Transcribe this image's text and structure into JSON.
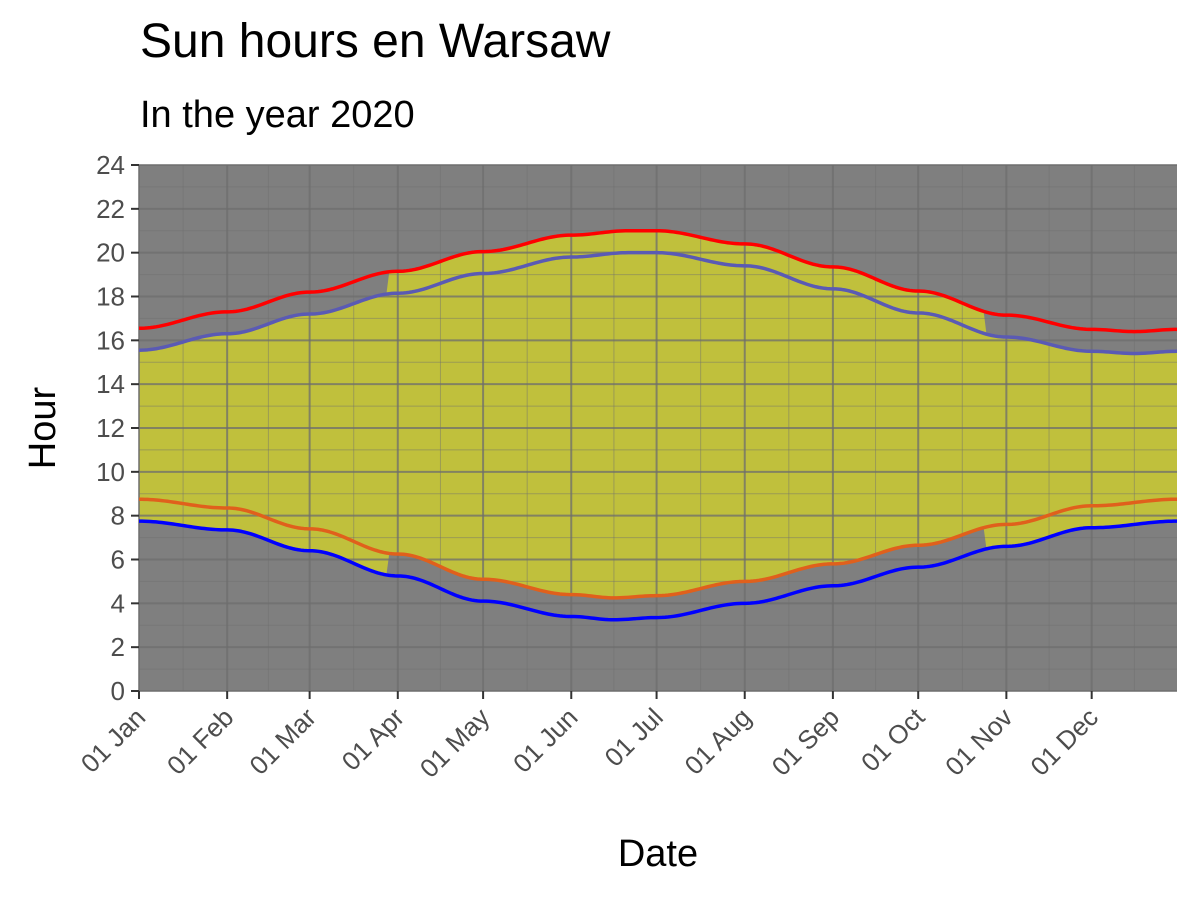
{
  "chart_data": {
    "type": "line",
    "title": "Sun hours en Warsaw",
    "subtitle": "In the year 2020",
    "xlabel": "Date",
    "ylabel": "Hour",
    "ylim": [
      0,
      24
    ],
    "xlim": [
      "2020-01-01",
      "2020-12-31"
    ],
    "y_ticks": [
      0,
      2,
      4,
      6,
      8,
      10,
      12,
      14,
      16,
      18,
      20,
      22,
      24
    ],
    "x_ticks": [
      {
        "date": "2020-01-01",
        "label": "01 Jan"
      },
      {
        "date": "2020-02-01",
        "label": "01 Feb"
      },
      {
        "date": "2020-03-01",
        "label": "01 Mar"
      },
      {
        "date": "2020-04-01",
        "label": "01 Apr"
      },
      {
        "date": "2020-05-01",
        "label": "01 May"
      },
      {
        "date": "2020-06-01",
        "label": "01 Jun"
      },
      {
        "date": "2020-07-01",
        "label": "01 Jul"
      },
      {
        "date": "2020-08-01",
        "label": "01 Aug"
      },
      {
        "date": "2020-09-01",
        "label": "01 Sep"
      },
      {
        "date": "2020-10-01",
        "label": "01 Oct"
      },
      {
        "date": "2020-11-01",
        "label": "01 Nov"
      },
      {
        "date": "2020-12-01",
        "label": "01 Dec"
      }
    ],
    "grid": true,
    "legend": "none",
    "colors": {
      "panel": "#7f7f7f",
      "grid": "#6e6e6e",
      "daylight": "#c0c03c",
      "sunrise_standard": "#0000ff",
      "sunset_standard": "#ff0000",
      "sunrise_local": "#e0601c",
      "sunset_local": "#5a5ab4"
    },
    "dst_period": [
      "2020-03-29",
      "2020-10-25"
    ],
    "series": [
      {
        "key": "sunset_standard",
        "x": [
          "2020-01-01",
          "2020-02-01",
          "2020-03-01",
          "2020-04-01",
          "2020-05-01",
          "2020-06-01",
          "2020-06-21",
          "2020-07-01",
          "2020-08-01",
          "2020-09-01",
          "2020-10-01",
          "2020-11-01",
          "2020-12-01",
          "2020-12-16",
          "2020-12-31"
        ],
        "values": [
          16.55,
          17.3,
          18.2,
          19.15,
          20.05,
          20.8,
          21.0,
          21.0,
          20.4,
          19.35,
          18.25,
          17.15,
          16.5,
          16.4,
          16.5
        ]
      },
      {
        "key": "sunset_local",
        "x": [
          "2020-01-01",
          "2020-02-01",
          "2020-03-01",
          "2020-04-01",
          "2020-05-01",
          "2020-06-01",
          "2020-06-21",
          "2020-07-01",
          "2020-08-01",
          "2020-09-01",
          "2020-10-01",
          "2020-11-01",
          "2020-12-01",
          "2020-12-16",
          "2020-12-31"
        ],
        "values": [
          15.55,
          16.3,
          17.2,
          18.15,
          19.05,
          19.8,
          20.0,
          20.0,
          19.4,
          18.35,
          17.25,
          16.15,
          15.5,
          15.4,
          15.5
        ]
      },
      {
        "key": "sunrise_local",
        "x": [
          "2020-01-01",
          "2020-02-01",
          "2020-03-01",
          "2020-04-01",
          "2020-05-01",
          "2020-06-01",
          "2020-06-16",
          "2020-07-01",
          "2020-08-01",
          "2020-09-01",
          "2020-10-01",
          "2020-11-01",
          "2020-12-01",
          "2020-12-31"
        ],
        "values": [
          8.75,
          8.35,
          7.4,
          6.25,
          5.1,
          4.4,
          4.25,
          4.35,
          5.0,
          5.8,
          6.65,
          7.6,
          8.45,
          8.75
        ]
      },
      {
        "key": "sunrise_standard",
        "x": [
          "2020-01-01",
          "2020-02-01",
          "2020-03-01",
          "2020-04-01",
          "2020-05-01",
          "2020-06-01",
          "2020-06-16",
          "2020-07-01",
          "2020-08-01",
          "2020-09-01",
          "2020-10-01",
          "2020-11-01",
          "2020-12-01",
          "2020-12-31"
        ],
        "values": [
          7.75,
          7.35,
          6.4,
          5.25,
          4.1,
          3.4,
          3.25,
          3.35,
          4.0,
          4.8,
          5.65,
          6.6,
          7.45,
          7.75
        ]
      }
    ]
  }
}
